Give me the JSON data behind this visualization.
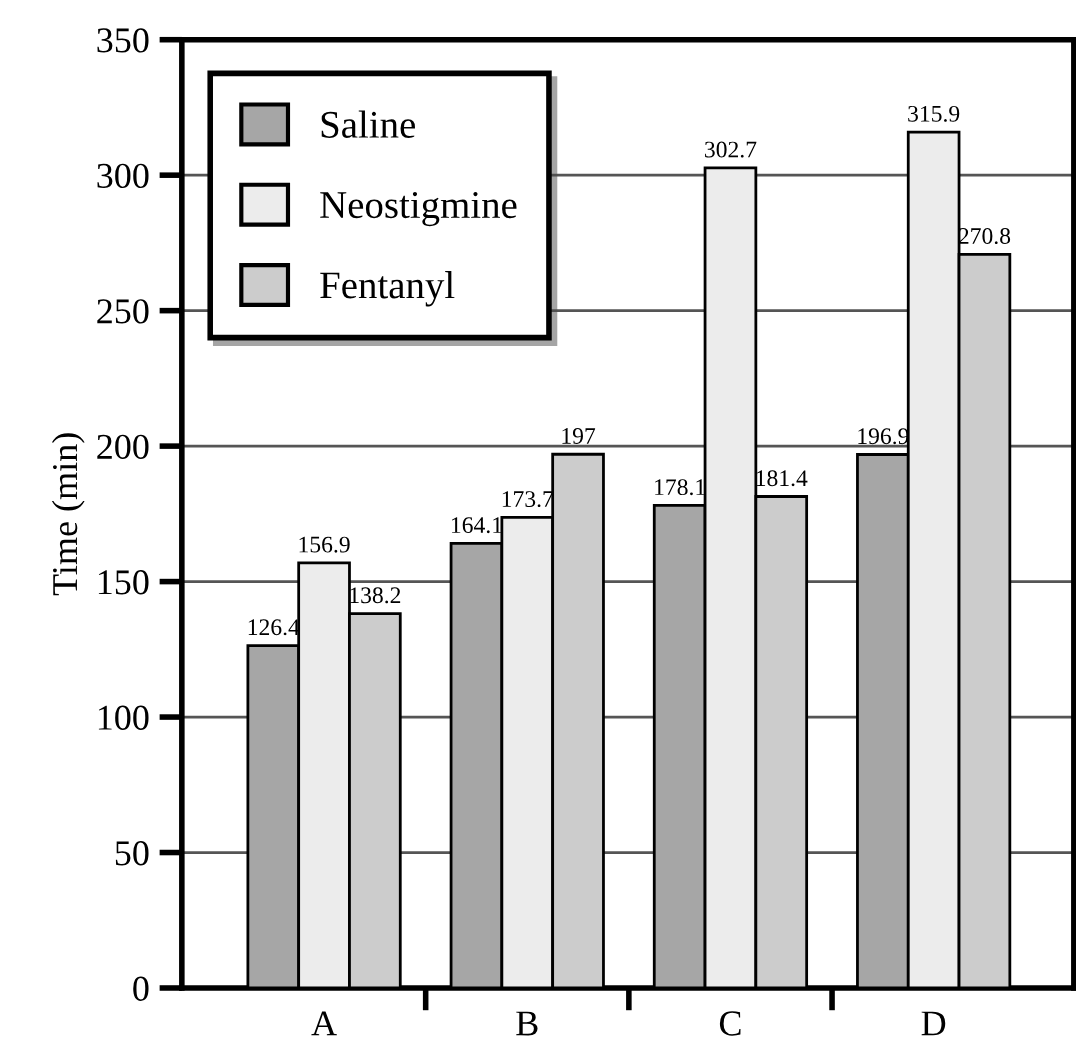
{
  "chart_data": {
    "type": "bar",
    "ylabel": "Time (min)",
    "categories": [
      "A",
      "B",
      "C",
      "D"
    ],
    "series": [
      {
        "name": "Saline",
        "color": "#a6a6a6",
        "values": [
          126.4,
          164.1,
          178.1,
          196.9
        ]
      },
      {
        "name": "Neostigmine",
        "color": "#ececec",
        "values": [
          156.9,
          173.7,
          302.7,
          315.9
        ]
      },
      {
        "name": "Fentanyl",
        "color": "#cccccc",
        "values": [
          138.2,
          197,
          181.4,
          270.8
        ]
      }
    ],
    "ylim": [
      0,
      350
    ],
    "yticks": [
      0,
      50,
      100,
      150,
      200,
      250,
      300,
      350
    ],
    "grid": "y",
    "legend": "top left",
    "data_labels": true
  }
}
